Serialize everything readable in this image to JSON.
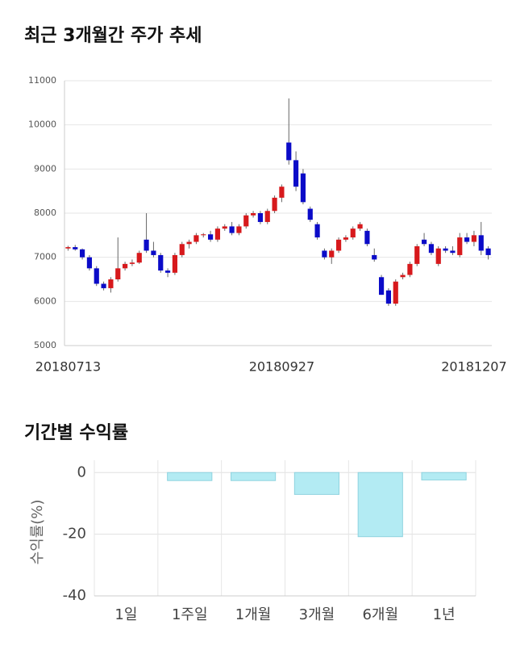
{
  "chart_data": [
    {
      "type": "candlestick",
      "title": "최근 3개월간 주가 추세",
      "categories": [
        "20180713",
        null,
        null,
        null,
        null,
        null,
        null,
        null,
        null,
        null,
        null,
        null,
        null,
        null,
        null,
        null,
        null,
        null,
        null,
        null,
        null,
        null,
        null,
        null,
        null,
        null,
        null,
        null,
        null,
        null,
        "20180927",
        null,
        null,
        null,
        null,
        null,
        null,
        null,
        null,
        null,
        null,
        null,
        null,
        null,
        null,
        null,
        null,
        null,
        null,
        null,
        null,
        null,
        null,
        null,
        null,
        null,
        null,
        "20181207",
        null,
        null
      ],
      "candles": [
        {
          "o": 7200,
          "h": 7260,
          "l": 7150,
          "c": 7230
        },
        {
          "o": 7230,
          "h": 7280,
          "l": 7150,
          "c": 7180
        },
        {
          "o": 7180,
          "h": 7200,
          "l": 6950,
          "c": 7000
        },
        {
          "o": 7000,
          "h": 7050,
          "l": 6700,
          "c": 6750
        },
        {
          "o": 6750,
          "h": 6800,
          "l": 6350,
          "c": 6400
        },
        {
          "o": 6400,
          "h": 6450,
          "l": 6250,
          "c": 6300
        },
        {
          "o": 6300,
          "h": 6550,
          "l": 6200,
          "c": 6500
        },
        {
          "o": 6500,
          "h": 7450,
          "l": 6450,
          "c": 6750
        },
        {
          "o": 6750,
          "h": 6900,
          "l": 6700,
          "c": 6850
        },
        {
          "o": 6850,
          "h": 6950,
          "l": 6800,
          "c": 6880
        },
        {
          "o": 6880,
          "h": 7150,
          "l": 6850,
          "c": 7100
        },
        {
          "o": 7400,
          "h": 8000,
          "l": 7100,
          "c": 7150
        },
        {
          "o": 7150,
          "h": 7350,
          "l": 7000,
          "c": 7050
        },
        {
          "o": 7050,
          "h": 7100,
          "l": 6650,
          "c": 6700
        },
        {
          "o": 6700,
          "h": 6750,
          "l": 6550,
          "c": 6650
        },
        {
          "o": 6650,
          "h": 7100,
          "l": 6600,
          "c": 7050
        },
        {
          "o": 7050,
          "h": 7350,
          "l": 7000,
          "c": 7300
        },
        {
          "o": 7300,
          "h": 7400,
          "l": 7200,
          "c": 7350
        },
        {
          "o": 7350,
          "h": 7550,
          "l": 7300,
          "c": 7500
        },
        {
          "o": 7500,
          "h": 7550,
          "l": 7450,
          "c": 7520
        },
        {
          "o": 7520,
          "h": 7600,
          "l": 7350,
          "c": 7400
        },
        {
          "o": 7400,
          "h": 7700,
          "l": 7350,
          "c": 7650
        },
        {
          "o": 7650,
          "h": 7750,
          "l": 7600,
          "c": 7700
        },
        {
          "o": 7700,
          "h": 7800,
          "l": 7500,
          "c": 7550
        },
        {
          "o": 7550,
          "h": 7750,
          "l": 7500,
          "c": 7700
        },
        {
          "o": 7700,
          "h": 8000,
          "l": 7650,
          "c": 7950
        },
        {
          "o": 7950,
          "h": 8050,
          "l": 7900,
          "c": 8000
        },
        {
          "o": 8000,
          "h": 8050,
          "l": 7750,
          "c": 7800
        },
        {
          "o": 7800,
          "h": 8100,
          "l": 7750,
          "c": 8050
        },
        {
          "o": 8050,
          "h": 8400,
          "l": 8000,
          "c": 8350
        },
        {
          "o": 8350,
          "h": 8650,
          "l": 8250,
          "c": 8600
        },
        {
          "o": 9600,
          "h": 10600,
          "l": 9100,
          "c": 9200
        },
        {
          "o": 9200,
          "h": 9400,
          "l": 8500,
          "c": 8600
        },
        {
          "o": 8900,
          "h": 9000,
          "l": 8200,
          "c": 8250
        },
        {
          "o": 8100,
          "h": 8150,
          "l": 7800,
          "c": 7850
        },
        {
          "o": 7750,
          "h": 7800,
          "l": 7400,
          "c": 7450
        },
        {
          "o": 7150,
          "h": 7200,
          "l": 6950,
          "c": 7000
        },
        {
          "o": 7000,
          "h": 7200,
          "l": 6850,
          "c": 7150
        },
        {
          "o": 7150,
          "h": 7450,
          "l": 7100,
          "c": 7400
        },
        {
          "o": 7400,
          "h": 7500,
          "l": 7350,
          "c": 7450
        },
        {
          "o": 7450,
          "h": 7700,
          "l": 7400,
          "c": 7650
        },
        {
          "o": 7650,
          "h": 7800,
          "l": 7600,
          "c": 7750
        },
        {
          "o": 7600,
          "h": 7650,
          "l": 7250,
          "c": 7300
        },
        {
          "o": 7050,
          "h": 7200,
          "l": 6900,
          "c": 6950
        },
        {
          "o": 6550,
          "h": 6600,
          "l": 6150,
          "c": 6150
        },
        {
          "o": 6250,
          "h": 6300,
          "l": 5900,
          "c": 5950
        },
        {
          "o": 5950,
          "h": 6500,
          "l": 5900,
          "c": 6450
        },
        {
          "o": 6550,
          "h": 6650,
          "l": 6500,
          "c": 6600
        },
        {
          "o": 6600,
          "h": 6900,
          "l": 6550,
          "c": 6850
        },
        {
          "o": 6850,
          "h": 7300,
          "l": 6800,
          "c": 7250
        },
        {
          "o": 7400,
          "h": 7550,
          "l": 7250,
          "c": 7300
        },
        {
          "o": 7300,
          "h": 7350,
          "l": 7050,
          "c": 7100
        },
        {
          "o": 6850,
          "h": 7250,
          "l": 6800,
          "c": 7200
        },
        {
          "o": 7200,
          "h": 7250,
          "l": 7100,
          "c": 7150
        },
        {
          "o": 7150,
          "h": 7250,
          "l": 7050,
          "c": 7100
        },
        {
          "o": 7050,
          "h": 7550,
          "l": 7000,
          "c": 7450
        },
        {
          "o": 7450,
          "h": 7550,
          "l": 7300,
          "c": 7350
        },
        {
          "o": 7350,
          "h": 7600,
          "l": 7250,
          "c": 7500
        },
        {
          "o": 7500,
          "h": 7800,
          "l": 7050,
          "c": 7150
        },
        {
          "o": 7200,
          "h": 7250,
          "l": 6950,
          "c": 7050
        }
      ],
      "up_color": "#d7191c",
      "down_color": "#0b0bc8",
      "ylim": [
        5000,
        11000
      ],
      "yticks": [
        5000,
        6000,
        7000,
        8000,
        9000,
        10000,
        11000
      ],
      "grid": true
    },
    {
      "type": "bar",
      "title": "기간별 수익률",
      "ylabel": "수익률(%)",
      "categories": [
        "1일",
        "1주일",
        "1개월",
        "3개월",
        "6개월",
        "1년"
      ],
      "values": [
        0,
        -2.6,
        -2.6,
        -7.1,
        -20.8,
        -2.4
      ],
      "color": "#b3ebf3",
      "ylim": [
        -40,
        4
      ],
      "yticks": [
        0,
        -20,
        -40
      ],
      "grid": true
    }
  ]
}
